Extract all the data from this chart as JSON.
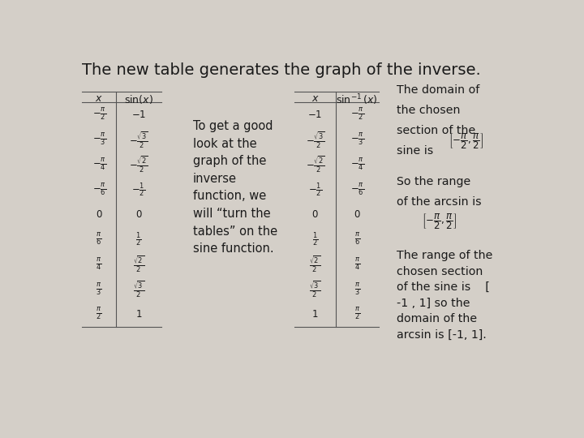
{
  "background_color": "#d4cfc8",
  "title": "The new table generates the graph of the inverse.",
  "title_fontsize": 14,
  "table1_rows": [
    [
      "-\\frac{\\pi}{2}",
      "-1"
    ],
    [
      "-\\frac{\\pi}{3}",
      "-\\frac{\\sqrt{3}}{2}"
    ],
    [
      "-\\frac{\\pi}{4}",
      "-\\frac{\\sqrt{2}}{2}"
    ],
    [
      "-\\frac{\\pi}{6}",
      "-\\frac{1}{2}"
    ],
    [
      "0",
      "0"
    ],
    [
      "\\frac{\\pi}{6}",
      "\\frac{1}{2}"
    ],
    [
      "\\frac{\\pi}{4}",
      "\\frac{\\sqrt{2}}{2}"
    ],
    [
      "\\frac{\\pi}{3}",
      "\\frac{\\sqrt{3}}{2}"
    ],
    [
      "\\frac{\\pi}{2}",
      "1"
    ]
  ],
  "table2_rows": [
    [
      "-1",
      "-\\frac{\\pi}{2}"
    ],
    [
      "-\\frac{\\sqrt{3}}{2}",
      "-\\frac{\\pi}{3}"
    ],
    [
      "-\\frac{\\sqrt{2}}{2}",
      "-\\frac{\\pi}{4}"
    ],
    [
      "-\\frac{1}{2}",
      "-\\frac{\\pi}{6}"
    ],
    [
      "0",
      "0"
    ],
    [
      "\\frac{1}{2}",
      "\\frac{\\pi}{6}"
    ],
    [
      "\\frac{\\sqrt{2}}{2}",
      "\\frac{\\pi}{4}"
    ],
    [
      "\\frac{\\sqrt{3}}{2}",
      "\\frac{\\pi}{3}"
    ],
    [
      "1",
      "\\frac{\\pi}{2}"
    ]
  ],
  "middle_text": "To get a good\nlook at the\ngraph of the\ninverse\nfunction, we\nwill “turn the\ntables” on the\nsine function.",
  "right_text3": "The range of the\nchosen section\nof the sine is    [\n-1 , 1] so the\ndomain of the\narcsin is [-1, 1].",
  "font_color": "#1a1a1a",
  "line_color": "#555555"
}
